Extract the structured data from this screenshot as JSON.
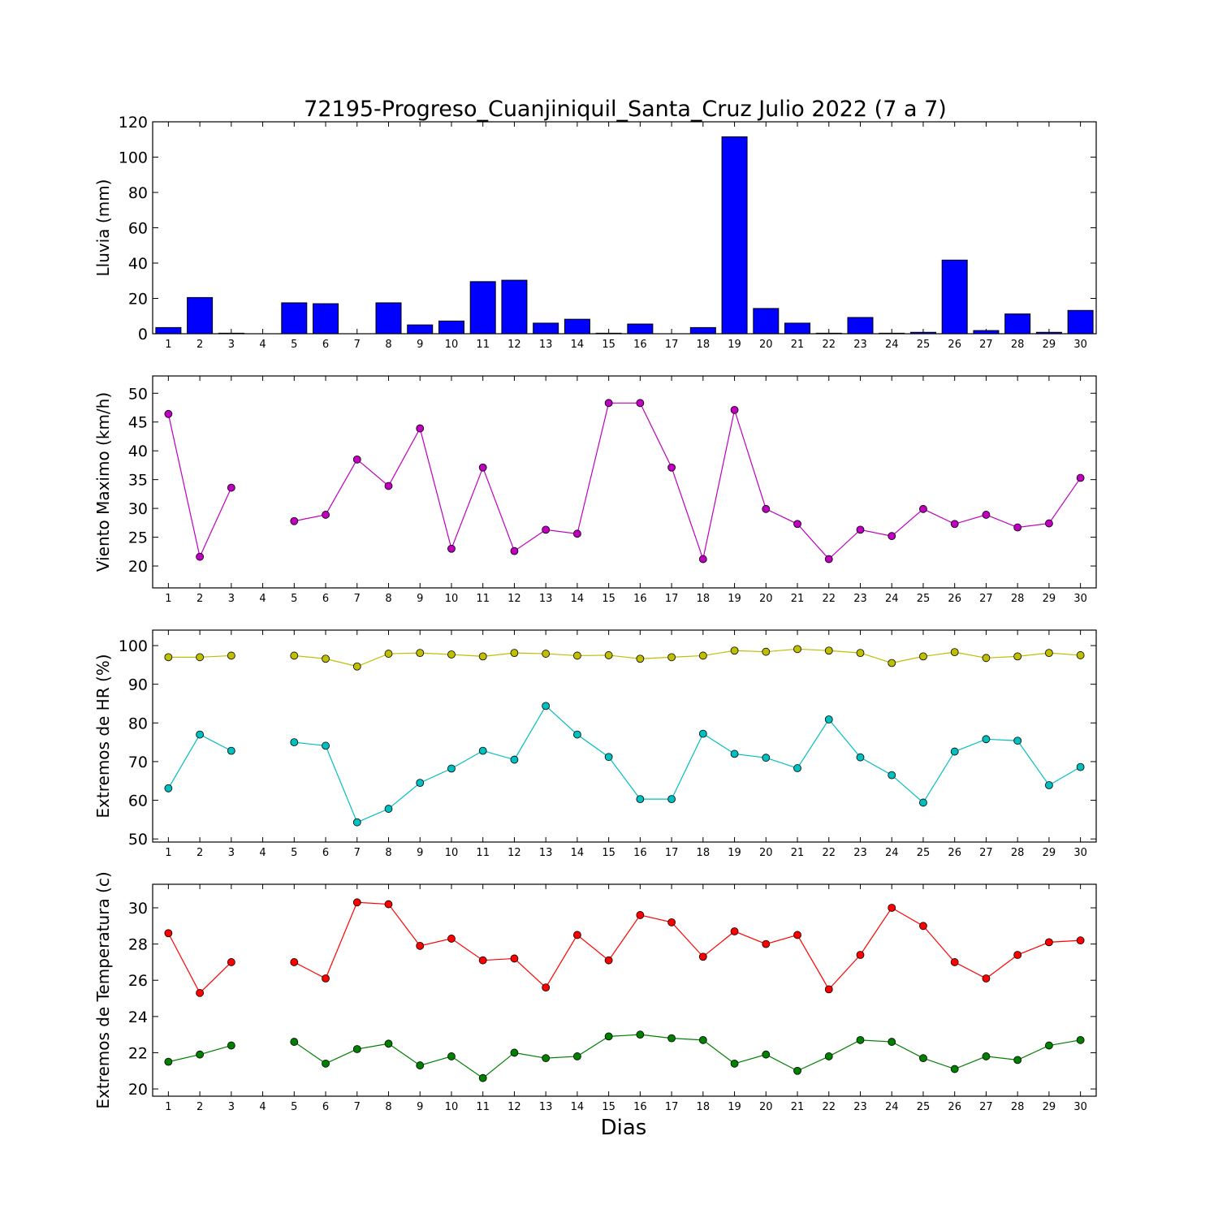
{
  "figure": {
    "title": "72195-Progreso_Cuanjiniquil_Santa_Cruz Julio 2022  (7 a 7)",
    "xlabel": "Dias"
  },
  "chart_data": [
    {
      "type": "bar",
      "ylabel": "Lluvia (mm)",
      "categories": [
        1,
        2,
        3,
        4,
        5,
        6,
        7,
        8,
        9,
        10,
        11,
        12,
        13,
        14,
        15,
        16,
        17,
        18,
        19,
        20,
        21,
        22,
        23,
        24,
        25,
        26,
        27,
        28,
        29,
        30
      ],
      "ylim": [
        0,
        120
      ],
      "yticks": [
        0,
        20,
        40,
        60,
        80,
        100,
        120
      ],
      "grid": false,
      "series": [
        {
          "color": "#0000ff",
          "values": [
            3.5,
            20.5,
            0.3,
            0,
            17.5,
            17,
            0,
            17.5,
            5,
            7.2,
            29.5,
            30.3,
            6,
            8.2,
            0.3,
            5.5,
            0,
            3.5,
            111.5,
            14.3,
            6,
            0.3,
            9.2,
            0.3,
            0.8,
            41.7,
            1.8,
            11.2,
            0.8,
            13.2
          ]
        }
      ]
    },
    {
      "type": "line",
      "ylabel": "Viento Maximo (km/h)",
      "x": [
        1,
        2,
        3,
        4,
        5,
        6,
        7,
        8,
        9,
        10,
        11,
        12,
        13,
        14,
        15,
        16,
        17,
        18,
        19,
        20,
        21,
        22,
        23,
        24,
        25,
        26,
        27,
        28,
        29,
        30
      ],
      "ylim": [
        16.2,
        53
      ],
      "yticks": [
        20,
        25,
        30,
        35,
        40,
        45,
        50
      ],
      "grid": false,
      "series": [
        {
          "color": "#bf00bf",
          "values": [
            46.4,
            21.6,
            33.6,
            null,
            27.8,
            28.9,
            38.5,
            33.9,
            43.9,
            23.0,
            37.1,
            22.6,
            26.3,
            25.6,
            48.3,
            48.3,
            37.1,
            21.2,
            47.1,
            29.9,
            27.3,
            21.2,
            26.3,
            25.2,
            29.9,
            27.3,
            28.9,
            26.7,
            27.4,
            35.3
          ]
        }
      ]
    },
    {
      "type": "line",
      "ylabel": "Extremos de HR (%)",
      "x": [
        1,
        2,
        3,
        4,
        5,
        6,
        7,
        8,
        9,
        10,
        11,
        12,
        13,
        14,
        15,
        16,
        17,
        18,
        19,
        20,
        21,
        22,
        23,
        24,
        25,
        26,
        27,
        28,
        29,
        30
      ],
      "ylim": [
        49.2,
        104
      ],
      "yticks": [
        50,
        60,
        70,
        80,
        90,
        100
      ],
      "grid": false,
      "series": [
        {
          "color": "#bfbf00",
          "values": [
            97,
            97,
            97.4,
            null,
            97.4,
            96.6,
            94.6,
            97.9,
            98.1,
            97.7,
            97.2,
            98.1,
            97.9,
            97.4,
            97.5,
            96.6,
            97,
            97.4,
            98.7,
            98.4,
            99.1,
            98.7,
            98.1,
            95.5,
            97.2,
            98.3,
            96.8,
            97.2,
            98.1,
            97.5
          ]
        }
      ]
    },
    {
      "type": "line",
      "ylabel": "Extremos de HR (%)",
      "x": [
        1,
        2,
        3,
        4,
        5,
        6,
        7,
        8,
        9,
        10,
        11,
        12,
        13,
        14,
        15,
        16,
        17,
        18,
        19,
        20,
        21,
        22,
        23,
        24,
        25,
        26,
        27,
        28,
        29,
        30
      ],
      "ylim": [
        49.2,
        104
      ],
      "yticks": [
        50,
        60,
        70,
        80,
        90,
        100
      ],
      "grid": false,
      "series": [
        {
          "color": "#00bfbf",
          "values": [
            63.1,
            77,
            72.8,
            null,
            75,
            74.1,
            54.3,
            57.8,
            64.5,
            68.2,
            72.8,
            70.5,
            84.4,
            77,
            71.2,
            60.3,
            60.3,
            77.2,
            72,
            71,
            68.3,
            80.9,
            71.1,
            66.5,
            59.4,
            72.6,
            75.8,
            75.4,
            63.9,
            68.6
          ]
        }
      ]
    },
    {
      "type": "line",
      "ylabel": "Extremos de Temperatura (c)",
      "x": [
        1,
        2,
        3,
        4,
        5,
        6,
        7,
        8,
        9,
        10,
        11,
        12,
        13,
        14,
        15,
        16,
        17,
        18,
        19,
        20,
        21,
        22,
        23,
        24,
        25,
        26,
        27,
        28,
        29,
        30
      ],
      "ylim": [
        19.6,
        31.3
      ],
      "yticks": [
        20,
        22,
        24,
        26,
        28,
        30
      ],
      "grid": false,
      "series": [
        {
          "color": "#ff0000",
          "values": [
            28.6,
            25.3,
            27,
            null,
            27,
            26.1,
            30.3,
            30.2,
            27.9,
            28.3,
            27.1,
            27.2,
            25.6,
            28.5,
            27.1,
            29.6,
            29.2,
            27.3,
            28.7,
            28,
            28.5,
            25.5,
            27.4,
            30,
            29,
            27,
            26.1,
            27.4,
            28.1,
            28.2
          ]
        }
      ]
    },
    {
      "type": "line",
      "ylabel": "Extremos de Temperatura (c)",
      "x": [
        1,
        2,
        3,
        4,
        5,
        6,
        7,
        8,
        9,
        10,
        11,
        12,
        13,
        14,
        15,
        16,
        17,
        18,
        19,
        20,
        21,
        22,
        23,
        24,
        25,
        26,
        27,
        28,
        29,
        30
      ],
      "ylim": [
        19.6,
        31.3
      ],
      "yticks": [
        20,
        22,
        24,
        26,
        28,
        30
      ],
      "grid": false,
      "series": [
        {
          "color": "#008000",
          "values": [
            21.5,
            21.9,
            22.4,
            null,
            22.6,
            21.4,
            22.2,
            22.5,
            21.3,
            21.8,
            20.6,
            22,
            21.7,
            21.8,
            22.9,
            23,
            22.8,
            22.7,
            21.4,
            21.9,
            21,
            21.8,
            22.7,
            22.6,
            21.7,
            21.1,
            21.8,
            21.6,
            22.4,
            22.7
          ]
        }
      ]
    }
  ]
}
